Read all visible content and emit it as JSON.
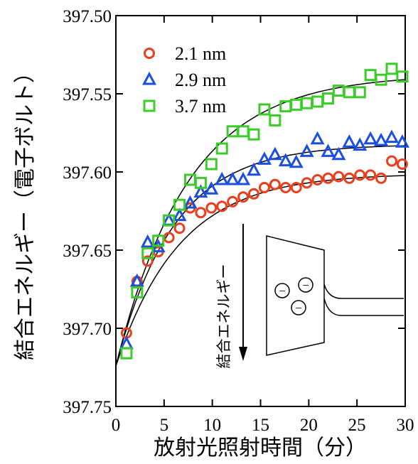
{
  "chart_data": {
    "type": "scatter",
    "xlabel": "放射光照射時間（分）",
    "ylabel": "結合エネルギー（電子ボルト）",
    "x": [
      1.1,
      2.2,
      3.3,
      4.4,
      5.5,
      6.6,
      7.7,
      8.8,
      9.9,
      11,
      12.1,
      13.2,
      14.3,
      15.4,
      16.5,
      17.6,
      18.7,
      19.8,
      20.9,
      22,
      23.1,
      24.2,
      25.3,
      26.4,
      27.5,
      28.6,
      29.7
    ],
    "series": [
      {
        "name": "2.1 nm",
        "color": "#e8401c",
        "marker": "circle",
        "values": [
          397.703,
          397.67,
          397.657,
          397.651,
          397.642,
          397.636,
          397.623,
          397.626,
          397.623,
          397.622,
          397.619,
          397.616,
          397.614,
          397.61,
          397.608,
          397.61,
          397.61,
          397.607,
          397.605,
          397.604,
          397.603,
          397.604,
          397.602,
          397.602,
          397.604,
          397.593,
          397.595
        ]
      },
      {
        "name": "2.9 nm",
        "color": "#1a4fe0",
        "marker": "triangle",
        "values": [
          397.71,
          397.67,
          397.645,
          397.648,
          397.631,
          397.628,
          397.62,
          397.613,
          397.611,
          397.605,
          397.605,
          397.605,
          397.599,
          397.592,
          397.589,
          397.593,
          397.594,
          397.587,
          397.579,
          397.587,
          397.589,
          397.581,
          397.583,
          397.579,
          397.58,
          397.578,
          397.581
        ]
      },
      {
        "name": "3.7 nm",
        "color": "#3ccc2a",
        "marker": "square",
        "values": [
          397.716,
          397.677,
          397.652,
          397.644,
          397.631,
          397.621,
          397.605,
          397.607,
          397.595,
          397.585,
          397.574,
          397.574,
          397.576,
          397.56,
          397.567,
          397.558,
          397.557,
          397.556,
          397.555,
          397.553,
          397.548,
          397.549,
          397.549,
          397.538,
          397.541,
          397.534,
          397.539
        ]
      }
    ],
    "xlim": [
      0,
      30
    ],
    "xticks": [
      0,
      5,
      10,
      15,
      20,
      25,
      30
    ],
    "ylim": [
      397.75,
      397.5
    ],
    "yticks": [
      {
        "value": 397.5,
        "label": "397.50"
      },
      397.55,
      {
        "value": 397.6,
        "label": "397.60"
      },
      397.65,
      {
        "value": 397.7,
        "label": "397.70"
      },
      397.75
    ],
    "legend": "upper left",
    "inset": {
      "label": "結合エネルギー",
      "charges": [
        "−",
        "−",
        "−"
      ]
    }
  }
}
